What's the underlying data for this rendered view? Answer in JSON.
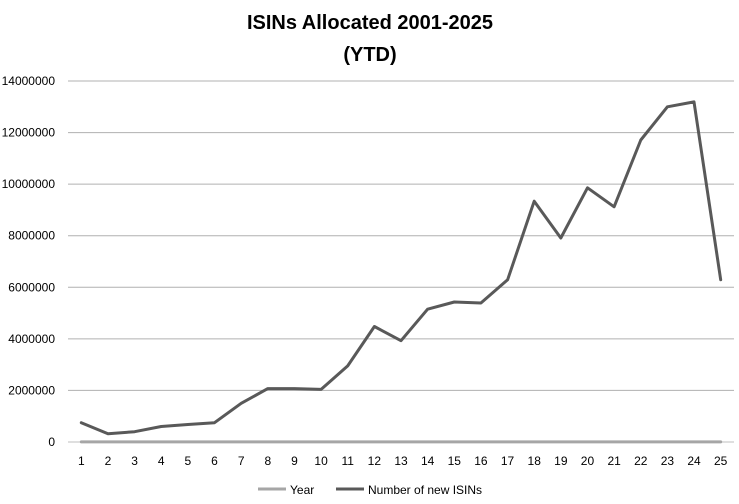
{
  "chart_data": {
    "type": "line",
    "title": "ISINs Allocated 2001-2025",
    "subtitle": "(YTD)",
    "xlabel": "",
    "ylabel": "",
    "categories": [
      "1",
      "2",
      "3",
      "4",
      "5",
      "6",
      "7",
      "8",
      "9",
      "10",
      "11",
      "12",
      "13",
      "14",
      "15",
      "16",
      "17",
      "18",
      "19",
      "20",
      "21",
      "22",
      "23",
      "24",
      "25"
    ],
    "ylim": [
      0,
      14000000
    ],
    "yticks": [
      "0",
      "2000000",
      "4000000",
      "6000000",
      "8000000",
      "10000000",
      "12000000",
      "14000000"
    ],
    "grid": true,
    "legend_position": "bottom",
    "series": [
      {
        "name": "Year",
        "color": "#a6a6a6",
        "values": [
          2001,
          2002,
          2003,
          2004,
          2005,
          2006,
          2007,
          2008,
          2009,
          2010,
          2011,
          2012,
          2013,
          2014,
          2015,
          2016,
          2017,
          2018,
          2019,
          2020,
          2021,
          2022,
          2023,
          2024,
          2025
        ]
      },
      {
        "name": "Number of new ISINs",
        "color": "#595959",
        "values": [
          750000,
          320000,
          400000,
          600000,
          680000,
          750000,
          1500000,
          2070000,
          2070000,
          2040000,
          2950000,
          4480000,
          3930000,
          5150000,
          5430000,
          5390000,
          6290000,
          9340000,
          7910000,
          9860000,
          9120000,
          11710000,
          13000000,
          13190000,
          6290000
        ]
      }
    ]
  }
}
